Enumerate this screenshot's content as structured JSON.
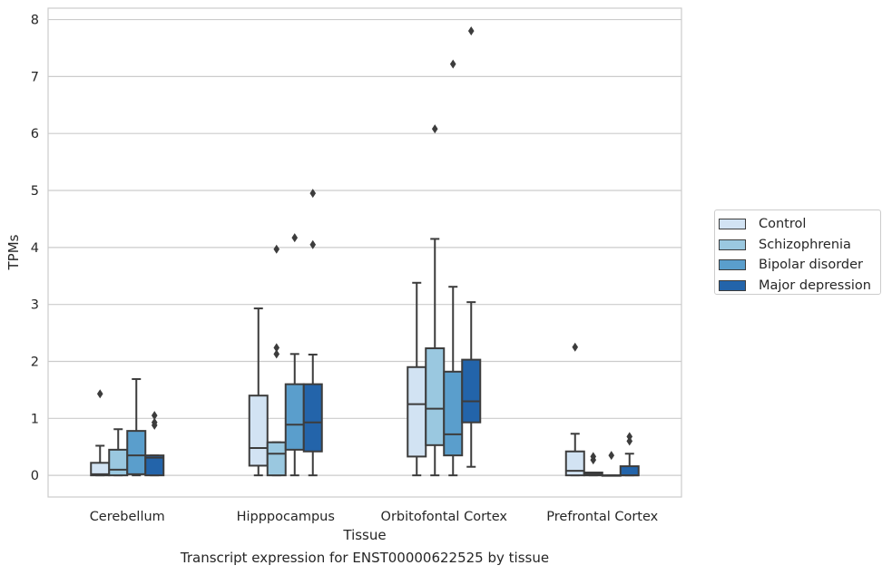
{
  "caption": "Transcript expression for ENST00000622525 by tissue",
  "chart_data": {
    "type": "box",
    "xlabel": "Tissue",
    "ylabel": "TPMs",
    "ylim": [
      -0.38,
      8.2
    ],
    "yticks": [
      0,
      1,
      2,
      3,
      4,
      5,
      6,
      7,
      8
    ],
    "grid": true,
    "legend_position": "right",
    "categories": [
      "Cerebellum",
      "Hipppocampus",
      "Orbitofontal Cortex",
      "Prefrontal Cortex"
    ],
    "series": [
      {
        "name": "Control",
        "color": "#d2e3f3",
        "boxes": [
          {
            "whislo": 0,
            "q1": 0,
            "med": 0.02,
            "q3": 0.22,
            "whishi": 0.52,
            "fliers": [
              1.43
            ]
          },
          {
            "whislo": 0,
            "q1": 0.17,
            "med": 0.48,
            "q3": 1.4,
            "whishi": 2.93,
            "fliers": []
          },
          {
            "whislo": 0,
            "q1": 0.33,
            "med": 1.25,
            "q3": 1.9,
            "whishi": 3.38,
            "fliers": []
          },
          {
            "whislo": 0,
            "q1": 0,
            "med": 0.08,
            "q3": 0.42,
            "whishi": 0.73,
            "fliers": [
              2.25
            ]
          }
        ]
      },
      {
        "name": "Schizophrenia",
        "color": "#9ac8e0",
        "boxes": [
          {
            "whislo": 0,
            "q1": 0,
            "med": 0.1,
            "q3": 0.45,
            "whishi": 0.81,
            "fliers": []
          },
          {
            "whislo": 0,
            "q1": 0,
            "med": 0.38,
            "q3": 0.58,
            "whishi": 0.58,
            "fliers": [
              2.13,
              2.24,
              3.97
            ]
          },
          {
            "whislo": 0,
            "q1": 0.53,
            "med": 1.17,
            "q3": 2.23,
            "whishi": 4.15,
            "fliers": [
              6.08
            ]
          },
          {
            "whislo": 0,
            "q1": 0,
            "med": 0.02,
            "q3": 0.05,
            "whishi": 0.05,
            "fliers": [
              0.27,
              0.33
            ]
          }
        ]
      },
      {
        "name": "Bipolar disorder",
        "color": "#5a9ecc",
        "boxes": [
          {
            "whislo": 0,
            "q1": 0.02,
            "med": 0.35,
            "q3": 0.78,
            "whishi": 1.69,
            "fliers": []
          },
          {
            "whislo": 0,
            "q1": 0.45,
            "med": 0.89,
            "q3": 1.6,
            "whishi": 2.13,
            "fliers": [
              4.17
            ]
          },
          {
            "whislo": 0,
            "q1": 0.35,
            "med": 0.72,
            "q3": 1.82,
            "whishi": 3.31,
            "fliers": [
              7.22
            ]
          },
          {
            "whislo": 0,
            "q1": 0,
            "med": 0,
            "q3": 0,
            "whishi": 0,
            "fliers": [
              0.35
            ]
          }
        ]
      },
      {
        "name": "Major depression",
        "color": "#2364aa",
        "boxes": [
          {
            "whislo": 0,
            "q1": 0,
            "med": 0.31,
            "q3": 0.35,
            "whishi": 0.35,
            "fliers": [
              0.88,
              0.93,
              1.05
            ]
          },
          {
            "whislo": 0,
            "q1": 0.42,
            "med": 0.93,
            "q3": 1.6,
            "whishi": 2.12,
            "fliers": [
              4.05,
              4.95
            ]
          },
          {
            "whislo": 0.15,
            "q1": 0.93,
            "med": 1.3,
            "q3": 2.03,
            "whishi": 3.04,
            "fliers": [
              7.8
            ]
          },
          {
            "whislo": 0,
            "q1": 0,
            "med": 0,
            "q3": 0.16,
            "whishi": 0.38,
            "fliers": [
              0.6,
              0.68
            ]
          }
        ]
      }
    ]
  }
}
